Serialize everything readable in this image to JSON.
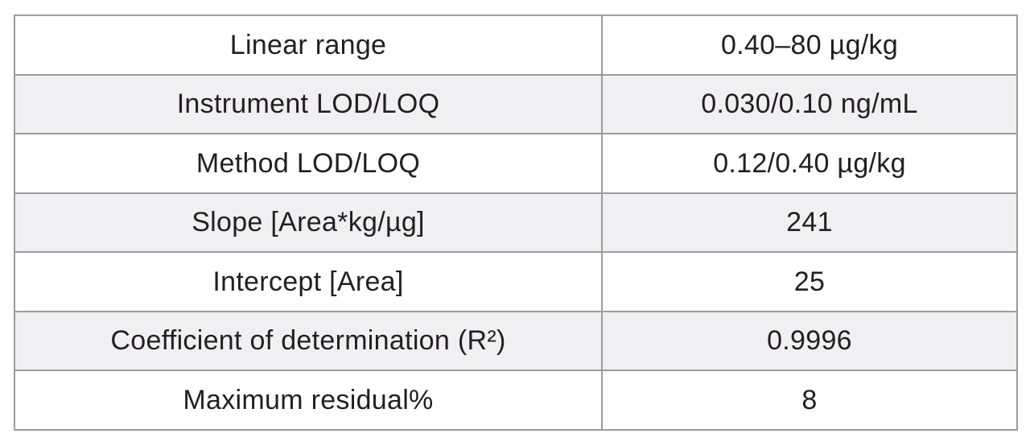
{
  "table": {
    "name": "method-validation-parameters",
    "columns": [
      "parameter",
      "value"
    ],
    "rows": [
      {
        "parameter": "Linear range",
        "value": "0.40–80 µg/kg"
      },
      {
        "parameter": "Instrument LOD/LOQ",
        "value": "0.030/0.10 ng/mL"
      },
      {
        "parameter": "Method LOD/LOQ",
        "value": "0.12/0.40 µg/kg"
      },
      {
        "parameter": "Slope [Area*kg/µg]",
        "value": "241"
      },
      {
        "parameter": "Intercept [Area]",
        "value": "25"
      },
      {
        "parameter": "Coefficient of determination (R²)",
        "value": "0.9996"
      },
      {
        "parameter": "Maximum residual%",
        "value": "8"
      }
    ]
  },
  "colors": {
    "border": "#9a9b9d",
    "text": "#231f20",
    "row_background": "#ffffff",
    "row_alt_background": "#f0f0f2",
    "page_background": "#ffffff"
  }
}
